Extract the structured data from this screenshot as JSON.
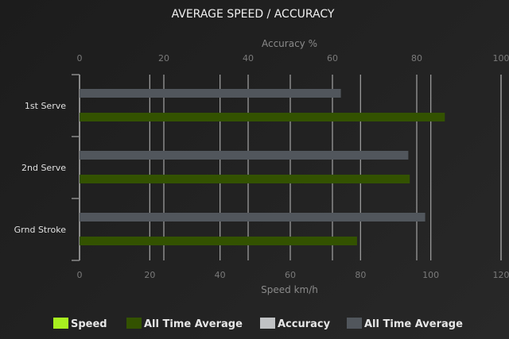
{
  "chart_data": {
    "type": "bar",
    "orientation": "horizontal",
    "title": "AVERAGE SPEED / ACCURACY",
    "categories": [
      "1st Serve",
      "2nd Serve",
      "Grnd Stroke"
    ],
    "top_axis": {
      "label": "Accuracy %",
      "range": [
        0,
        100
      ],
      "ticks": [
        "0",
        "20",
        "40",
        "60",
        "80",
        "100"
      ]
    },
    "bottom_axis": {
      "label": "Speed km/h",
      "range": [
        0,
        120
      ],
      "ticks": [
        "0",
        "20",
        "40",
        "60",
        "80",
        "100",
        "120"
      ]
    },
    "series": [
      {
        "name": "Speed",
        "axis": "bottom",
        "color": "#a8f020",
        "values": [
          null,
          null,
          null
        ]
      },
      {
        "name": "All Time Average",
        "axis": "bottom",
        "color": "#335200",
        "values": [
          104,
          94,
          79
        ]
      },
      {
        "name": "Accuracy",
        "axis": "top",
        "color": "#c0c2c4",
        "values": [
          null,
          null,
          null
        ]
      },
      {
        "name": "All Time Average",
        "axis": "top",
        "color": "#51565c",
        "values": [
          62,
          78,
          82
        ]
      }
    ],
    "grid": true,
    "legend": "bottom"
  }
}
